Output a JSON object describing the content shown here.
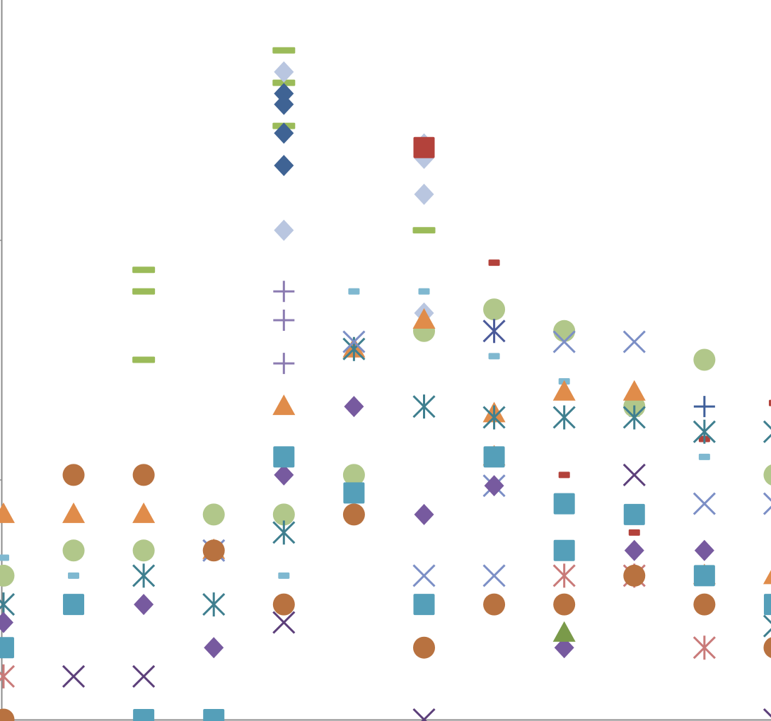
{
  "chart_data": {
    "type": "scatter",
    "title": "",
    "xlabel": "",
    "ylabel": "",
    "x_range": [
      -0.05,
      10.95
    ],
    "y_range": [
      0,
      20
    ],
    "grid": false,
    "legend": "none",
    "series": [
      {
        "marker": "bar",
        "color": "#9bbb59",
        "points": [
          [
            2,
            12.5
          ],
          [
            2,
            11.9
          ],
          [
            2,
            10.0
          ],
          [
            4,
            18.6
          ],
          [
            4,
            17.7
          ],
          [
            4,
            16.5
          ],
          [
            6,
            13.6
          ]
        ]
      },
      {
        "marker": "diamond",
        "color": "#b9c6e0",
        "points": [
          [
            4,
            18.0
          ],
          [
            4,
            13.6
          ],
          [
            6,
            16.0
          ],
          [
            6,
            15.6
          ],
          [
            6,
            14.6
          ],
          [
            6,
            11.3
          ]
        ]
      },
      {
        "marker": "diamond",
        "color": "#3f6394",
        "points": [
          [
            4,
            17.4
          ],
          [
            4,
            17.1
          ],
          [
            4,
            16.3
          ],
          [
            4,
            15.4
          ]
        ]
      },
      {
        "marker": "square",
        "color": "#b3423b",
        "points": [
          [
            6,
            15.9
          ]
        ]
      },
      {
        "marker": "dash",
        "color": "#b3423b",
        "points": [
          [
            7,
            12.7
          ],
          [
            10,
            7.8
          ],
          [
            8,
            6.8
          ],
          [
            9,
            5.2
          ],
          [
            11,
            8.8
          ]
        ]
      },
      {
        "marker": "dash",
        "color": "#7fb8d0",
        "points": [
          [
            5,
            11.9
          ],
          [
            6,
            11.9
          ],
          [
            7,
            10.1
          ],
          [
            8,
            9.4
          ],
          [
            9,
            8.5
          ],
          [
            10,
            7.3
          ],
          [
            0,
            4.5
          ],
          [
            1,
            4.0
          ],
          [
            4,
            4.0
          ]
        ]
      },
      {
        "marker": "plus",
        "color": "#8b7bb1",
        "points": [
          [
            4,
            11.9
          ],
          [
            4,
            11.1
          ],
          [
            4,
            9.9
          ]
        ]
      },
      {
        "marker": "plus",
        "color": "#3f5f9a",
        "points": [
          [
            10,
            8.7
          ]
        ]
      },
      {
        "marker": "circle",
        "color": "#b1c78a",
        "points": [
          [
            7,
            11.4
          ],
          [
            8,
            10.8
          ],
          [
            6,
            10.8
          ],
          [
            10,
            10.0
          ],
          [
            9,
            8.7
          ],
          [
            5,
            6.8
          ],
          [
            0,
            4.0
          ],
          [
            1,
            4.7
          ],
          [
            2,
            4.7
          ],
          [
            3,
            5.7
          ],
          [
            4,
            5.7
          ],
          [
            11,
            6.8
          ]
        ]
      },
      {
        "marker": "triangle",
        "color": "#e08c4a",
        "points": [
          [
            6,
            11.1
          ],
          [
            5,
            10.3
          ],
          [
            8,
            9.1
          ],
          [
            9,
            9.1
          ],
          [
            4,
            8.7
          ],
          [
            7,
            8.5
          ],
          [
            7,
            7.3
          ],
          [
            0,
            5.7
          ],
          [
            1,
            5.7
          ],
          [
            2,
            5.7
          ],
          [
            3,
            4.7
          ],
          [
            10,
            4.0
          ],
          [
            11,
            4.0
          ]
        ]
      },
      {
        "marker": "asterisk",
        "color": "#3f7f8f",
        "points": [
          [
            5,
            10.3
          ],
          [
            7,
            8.4
          ],
          [
            8,
            8.4
          ],
          [
            9,
            8.4
          ],
          [
            10,
            8.0
          ],
          [
            11,
            8.0
          ],
          [
            6,
            8.7
          ],
          [
            4,
            5.2
          ],
          [
            2,
            4.0
          ],
          [
            0,
            3.2
          ],
          [
            3,
            3.2
          ],
          [
            11,
            2.6
          ]
        ]
      },
      {
        "marker": "asterisk",
        "color": "#4b5a9a",
        "points": [
          [
            7,
            10.8
          ]
        ]
      },
      {
        "marker": "asterisk",
        "color": "#c97a79",
        "points": [
          [
            0,
            1.2
          ],
          [
            8,
            4.0
          ],
          [
            10,
            2.0
          ],
          [
            9,
            4.0
          ]
        ]
      },
      {
        "marker": "x",
        "color": "#7c8fc6",
        "points": [
          [
            5,
            10.5
          ],
          [
            8,
            10.5
          ],
          [
            9,
            10.5
          ],
          [
            7,
            6.5
          ],
          [
            10,
            6.0
          ],
          [
            11,
            6.0
          ],
          [
            3,
            4.7
          ],
          [
            6,
            4.0
          ],
          [
            7,
            4.0
          ]
        ]
      },
      {
        "marker": "x",
        "color": "#5c3f7a",
        "points": [
          [
            9,
            6.8
          ],
          [
            4,
            2.7
          ],
          [
            1,
            1.2
          ],
          [
            2,
            1.2
          ],
          [
            6,
            0
          ],
          [
            11,
            0
          ]
        ]
      },
      {
        "marker": "diamond",
        "color": "#775a9f",
        "points": [
          [
            5,
            8.7
          ],
          [
            4,
            6.8
          ],
          [
            7,
            6.5
          ],
          [
            6,
            5.7
          ],
          [
            2,
            3.2
          ],
          [
            0,
            2.7
          ],
          [
            3,
            2.0
          ],
          [
            9,
            4.7
          ],
          [
            10,
            4.7
          ],
          [
            8,
            2.0
          ],
          [
            11,
            2.0
          ]
        ]
      },
      {
        "marker": "square",
        "color": "#559fb9",
        "points": [
          [
            4,
            7.3
          ],
          [
            7,
            7.3
          ],
          [
            5,
            6.3
          ],
          [
            8,
            6.0
          ],
          [
            9,
            5.7
          ],
          [
            8,
            4.7
          ],
          [
            10,
            4.0
          ],
          [
            1,
            3.2
          ],
          [
            6,
            3.2
          ],
          [
            0,
            2.0
          ],
          [
            11,
            3.2
          ],
          [
            2,
            0
          ],
          [
            3,
            0
          ]
        ]
      },
      {
        "marker": "circle",
        "color": "#b87240",
        "points": [
          [
            1,
            6.8
          ],
          [
            2,
            6.8
          ],
          [
            5,
            5.7
          ],
          [
            3,
            4.7
          ],
          [
            9,
            4.0
          ],
          [
            4,
            3.2
          ],
          [
            7,
            3.2
          ],
          [
            8,
            3.2
          ],
          [
            10,
            3.2
          ],
          [
            6,
            2.0
          ],
          [
            11,
            2.0
          ],
          [
            0,
            0
          ]
        ]
      },
      {
        "marker": "triangle",
        "color": "#7a9a4a",
        "points": [
          [
            8,
            2.4
          ]
        ]
      }
    ]
  }
}
